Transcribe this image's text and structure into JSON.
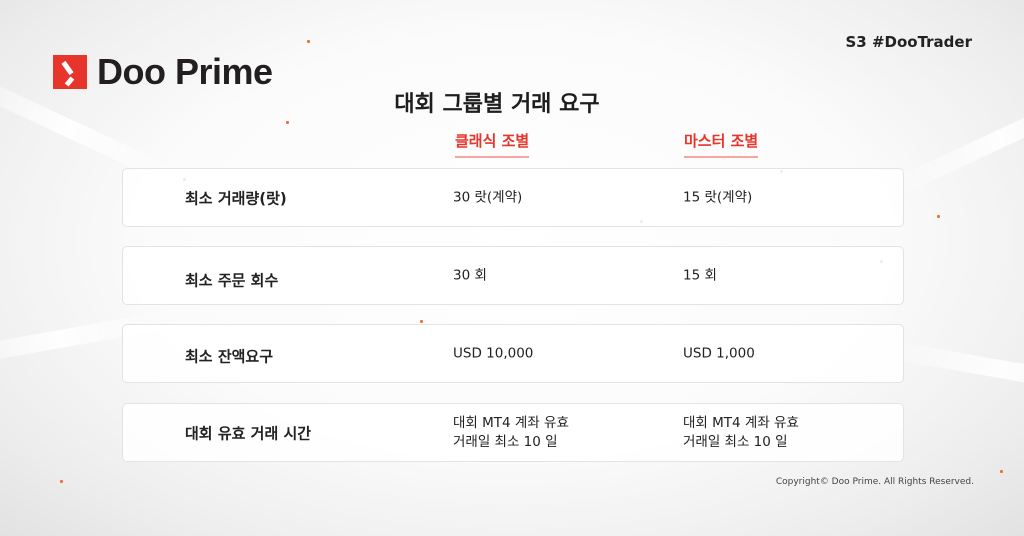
{
  "brand": {
    "name": "Doo Prime",
    "accent": "#e8352b"
  },
  "tag": "S3 #DooTrader",
  "title": "대회 그룹별 거래 요구",
  "columns": [
    "클래식 조별",
    "마스터 조별"
  ],
  "rows": [
    {
      "label": "최소 거래량(랏)",
      "classic": "30 랏(계약)",
      "master": "15 랏(계약)"
    },
    {
      "label": "최소 주문 회수",
      "classic": "30 회",
      "master": "15 회"
    },
    {
      "label": "최소 잔액요구",
      "classic": "USD 10,000",
      "master": "USD 1,000"
    },
    {
      "label": "대회 유효 거래 시간",
      "classic": "대회 MT4 계좌 유효\n거래일 최소 10 일",
      "master": "대회 MT4 계좌 유효\n거래일 최소 10 일"
    }
  ],
  "copyright": "Copyright© Doo Prime. All Rights Reserved."
}
